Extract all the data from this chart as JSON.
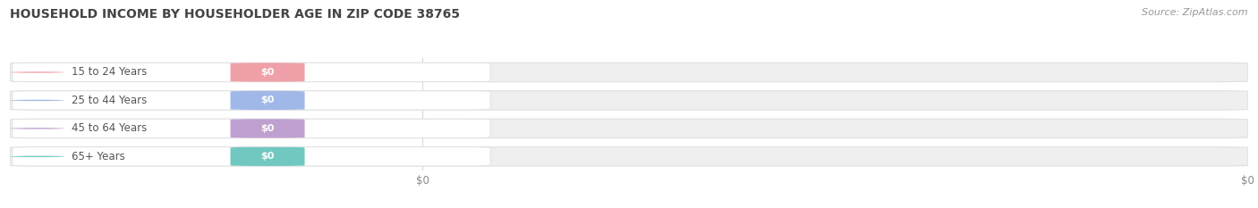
{
  "title": "HOUSEHOLD INCOME BY HOUSEHOLDER AGE IN ZIP CODE 38765",
  "source": "Source: ZipAtlas.com",
  "categories": [
    "15 to 24 Years",
    "25 to 44 Years",
    "45 to 64 Years",
    "65+ Years"
  ],
  "values": [
    0,
    0,
    0,
    0
  ],
  "bar_colors": [
    "#f0a0a8",
    "#a0b8e8",
    "#c0a0d0",
    "#70c8c0"
  ],
  "bar_bg_color": "#efefef",
  "bar_bg_edge_color": "#e0e0e0",
  "white_pill_color": "#ffffff",
  "bg_color": "#ffffff",
  "title_fontsize": 10,
  "source_fontsize": 8,
  "grid_color": "#d8d8d8",
  "text_color": "#555555",
  "tick_color": "#888888",
  "value_text_color": "#ffffff"
}
